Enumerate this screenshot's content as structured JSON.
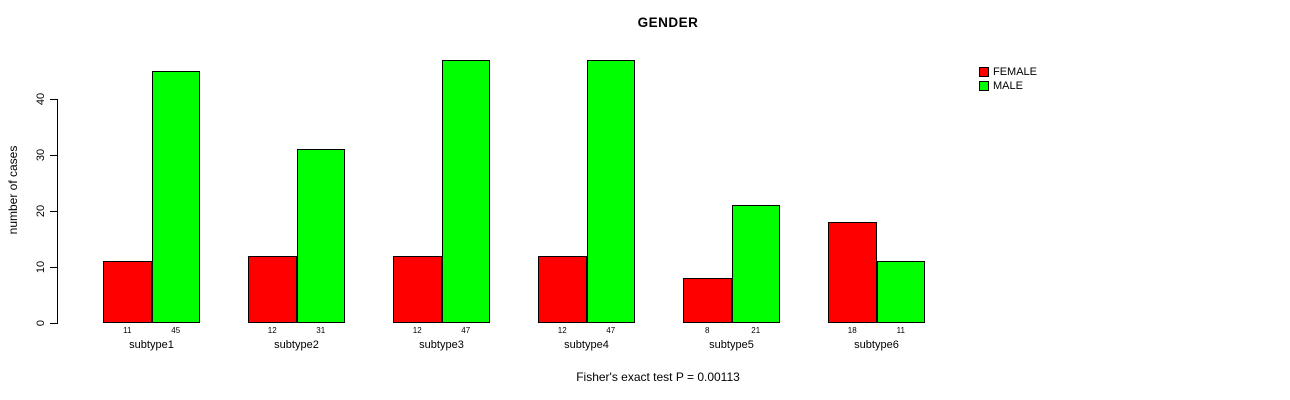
{
  "chart_data": {
    "type": "bar",
    "title": "GENDER",
    "ylabel": "number of cases",
    "xlabel": "",
    "categories": [
      "subtype1",
      "subtype2",
      "subtype3",
      "subtype4",
      "subtype5",
      "subtype6"
    ],
    "series": [
      {
        "name": "FEMALE",
        "color": "#ff0000",
        "values": [
          11,
          12,
          12,
          12,
          8,
          18
        ]
      },
      {
        "name": "MALE",
        "color": "#00ff00",
        "values": [
          45,
          31,
          47,
          47,
          21,
          11
        ]
      }
    ],
    "bar_value_labels": {
      "FEMALE": [
        11,
        12,
        12,
        12,
        8,
        18
      ],
      "MALE": [
        45,
        31,
        47,
        47,
        21,
        11
      ]
    },
    "yticks": [
      0,
      10,
      20,
      30,
      40
    ],
    "ylim": [
      0,
      47
    ],
    "grid": false,
    "legend_position": "top-right",
    "bar_border_color": "#000000",
    "footnote": "Fisher's exact test P = 0.00113"
  }
}
